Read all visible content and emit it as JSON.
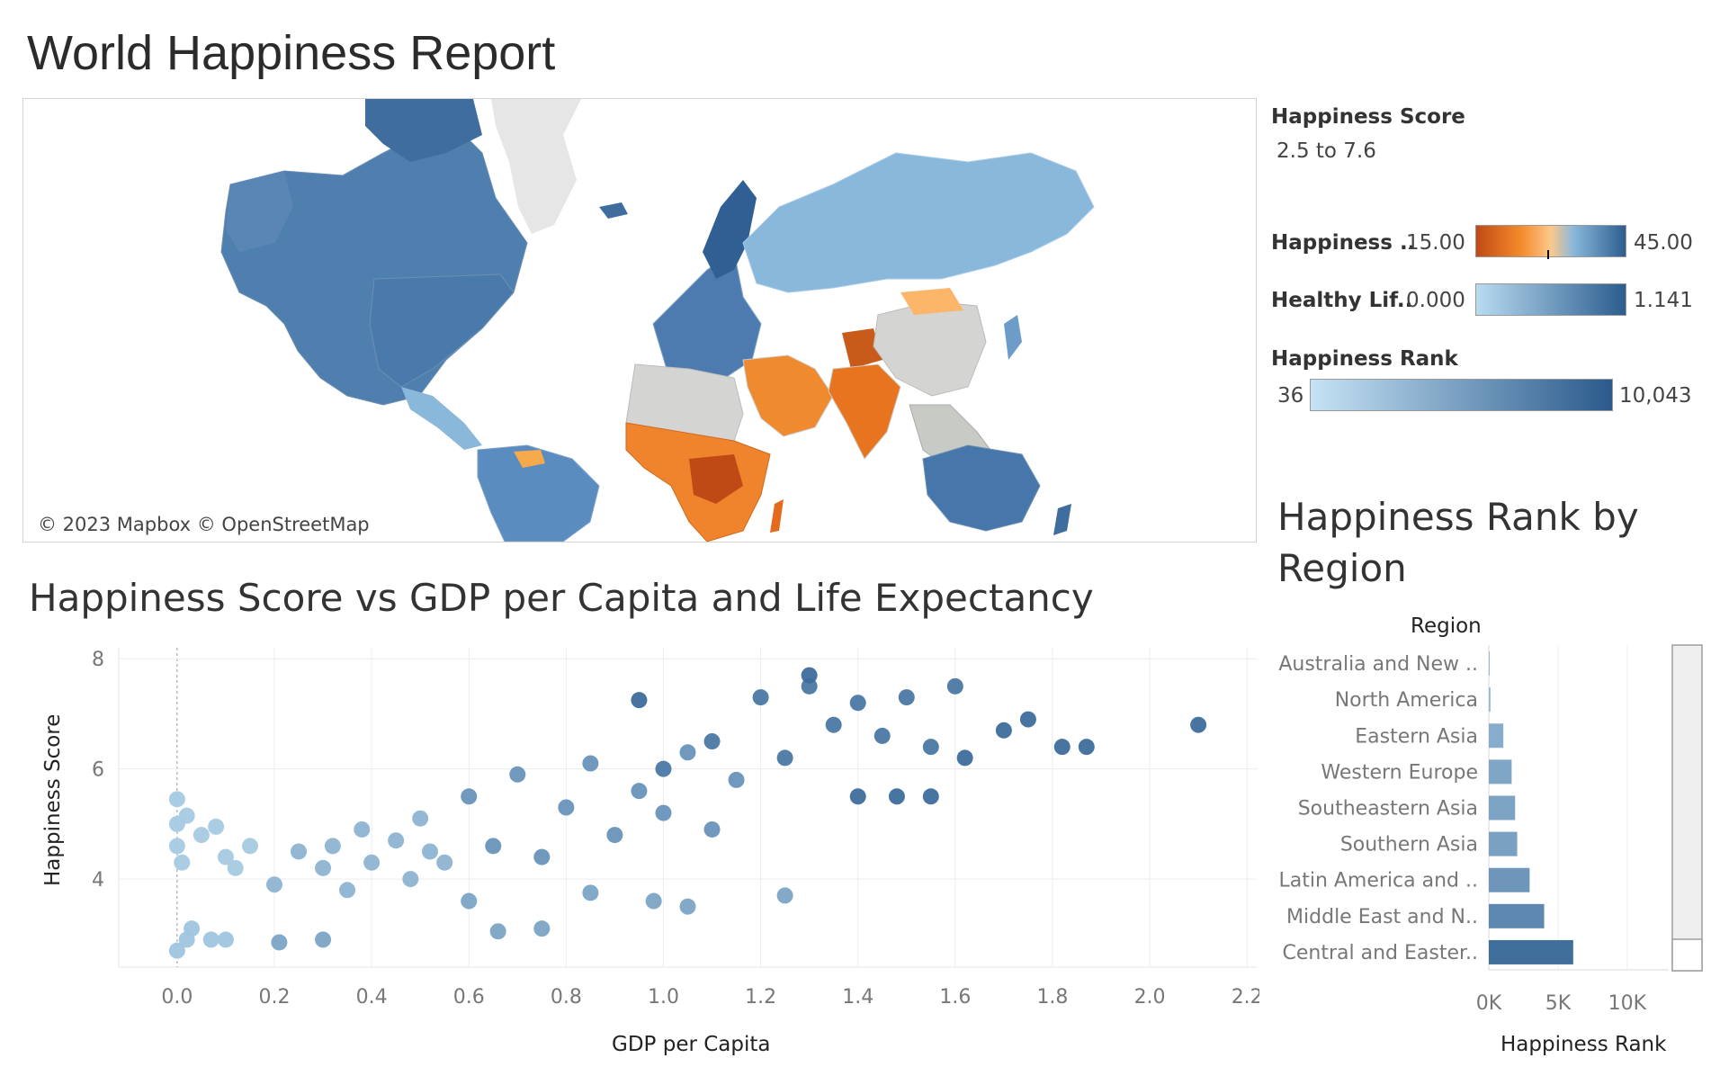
{
  "title": "World Happiness Report",
  "map": {
    "credit": "© 2023 Mapbox © OpenStreetMap",
    "colors": {
      "ocean": "#ffffff",
      "greenland": "#e6e6e6",
      "no_data": "#d4d4d2"
    }
  },
  "legend": {
    "happiness_score": {
      "title": "Happiness Score",
      "range": "2.5 to 7.6"
    },
    "happiness_color": {
      "label": "Happiness ..",
      "min": "15.00",
      "max": "45.00",
      "colors": [
        "#c04a16",
        "#f58a2b",
        "#fbc88a",
        "#8ab8db",
        "#2c5d8f"
      ]
    },
    "healthy_life": {
      "label": "Healthy Lif..",
      "min": "0.000",
      "max": "1.141",
      "colors": [
        "#b9dbf0",
        "#2c5d8f"
      ]
    },
    "happiness_rank": {
      "title": "Happiness Rank",
      "min": "36",
      "max": "10,043",
      "colors": [
        "#c6e3f5",
        "#2a5a8c"
      ]
    }
  },
  "scatter": {
    "title": "Happiness Score vs GDP per Capita and Life Expectancy",
    "xlabel": "GDP per Capita",
    "ylabel": "Happiness Score",
    "x_ticks": [
      "0.0",
      "0.2",
      "0.4",
      "0.6",
      "0.8",
      "1.0",
      "1.2",
      "1.4",
      "1.6",
      "1.8",
      "2.0",
      "2.2"
    ],
    "y_ticks": [
      "4",
      "6",
      "8"
    ]
  },
  "bars": {
    "title": "Happiness Rank by Region",
    "header": "Region",
    "xlabel": "Happiness Rank",
    "x_ticks": [
      "0K",
      "5K",
      "10K"
    ]
  },
  "chart_data": [
    {
      "type": "scatter",
      "title": "Happiness Score vs GDP per Capita and Life Expectancy",
      "xlabel": "GDP per Capita",
      "ylabel": "Happiness Score",
      "xlim": [
        -0.12,
        2.22
      ],
      "ylim": [
        2.4,
        8.2
      ],
      "grid": true,
      "color_encoding": "Healthy Life Expectancy",
      "point_groups": [
        {
          "x": [
            0.0,
            0.0,
            0.0,
            0.01,
            0.02,
            0.05,
            0.08,
            0.1,
            0.12,
            0.15
          ],
          "y": [
            5.45,
            5.0,
            4.6,
            4.3,
            5.15,
            4.8,
            4.95,
            4.4,
            4.2,
            4.6
          ],
          "healthy_life": 0.15
        },
        {
          "x": [
            0.0,
            0.02,
            0.07,
            0.1,
            0.03
          ],
          "y": [
            2.7,
            2.9,
            2.9,
            2.9,
            3.1
          ],
          "healthy_life": 0.2
        },
        {
          "x": [
            0.2,
            0.25,
            0.3,
            0.32,
            0.35,
            0.38,
            0.4,
            0.45,
            0.48,
            0.5,
            0.52,
            0.55
          ],
          "y": [
            3.9,
            4.5,
            4.2,
            4.6,
            3.8,
            4.9,
            4.3,
            4.7,
            4.0,
            5.1,
            4.5,
            4.3
          ],
          "healthy_life": 0.35
        },
        {
          "x": [
            0.21,
            0.3,
            0.6,
            0.66,
            0.75,
            0.85,
            0.98,
            1.05,
            1.25
          ],
          "y": [
            2.85,
            2.9,
            3.6,
            3.05,
            3.1,
            3.75,
            3.6,
            3.5,
            3.7
          ],
          "healthy_life": 0.5
        },
        {
          "x": [
            0.6,
            0.65,
            0.7,
            0.75,
            0.8,
            0.85,
            0.9,
            0.95,
            1.0,
            1.05,
            1.1,
            1.15
          ],
          "y": [
            5.5,
            4.6,
            5.9,
            4.4,
            5.3,
            6.1,
            4.8,
            5.6,
            5.2,
            6.3,
            4.9,
            5.8
          ],
          "healthy_life": 0.65
        },
        {
          "x": [
            1.0,
            1.1,
            1.2,
            1.25,
            1.3,
            1.35,
            1.4,
            1.45,
            1.5,
            1.55,
            1.6
          ],
          "y": [
            6.0,
            6.5,
            7.3,
            6.2,
            7.5,
            6.8,
            7.2,
            6.6,
            7.3,
            6.4,
            7.5
          ],
          "healthy_life": 0.9
        },
        {
          "x": [
            0.95,
            1.3,
            1.4,
            1.48,
            1.55,
            1.62,
            1.7,
            1.75,
            1.82,
            1.87
          ],
          "y": [
            7.25,
            7.7,
            5.5,
            5.5,
            5.5,
            6.2,
            6.7,
            6.9,
            6.4,
            6.4
          ],
          "healthy_life": 1.0
        },
        {
          "x": [
            2.1
          ],
          "y": [
            6.8
          ],
          "healthy_life": 1.0
        }
      ]
    },
    {
      "type": "bar",
      "orientation": "horizontal",
      "title": "Happiness Rank by Region",
      "xlabel": "Happiness Rank",
      "ylabel": "Region",
      "xlim": [
        0,
        13000
      ],
      "categories": [
        "Australia and New ..",
        "North America",
        "Eastern Asia",
        "Western Europe",
        "Southeastern Asia",
        "Southern Asia",
        "Latin America and ..",
        "Middle East and N..",
        "Central and Easter.."
      ],
      "values": [
        36,
        120,
        1050,
        1650,
        1900,
        2050,
        2950,
        4000,
        6100
      ]
    }
  ]
}
